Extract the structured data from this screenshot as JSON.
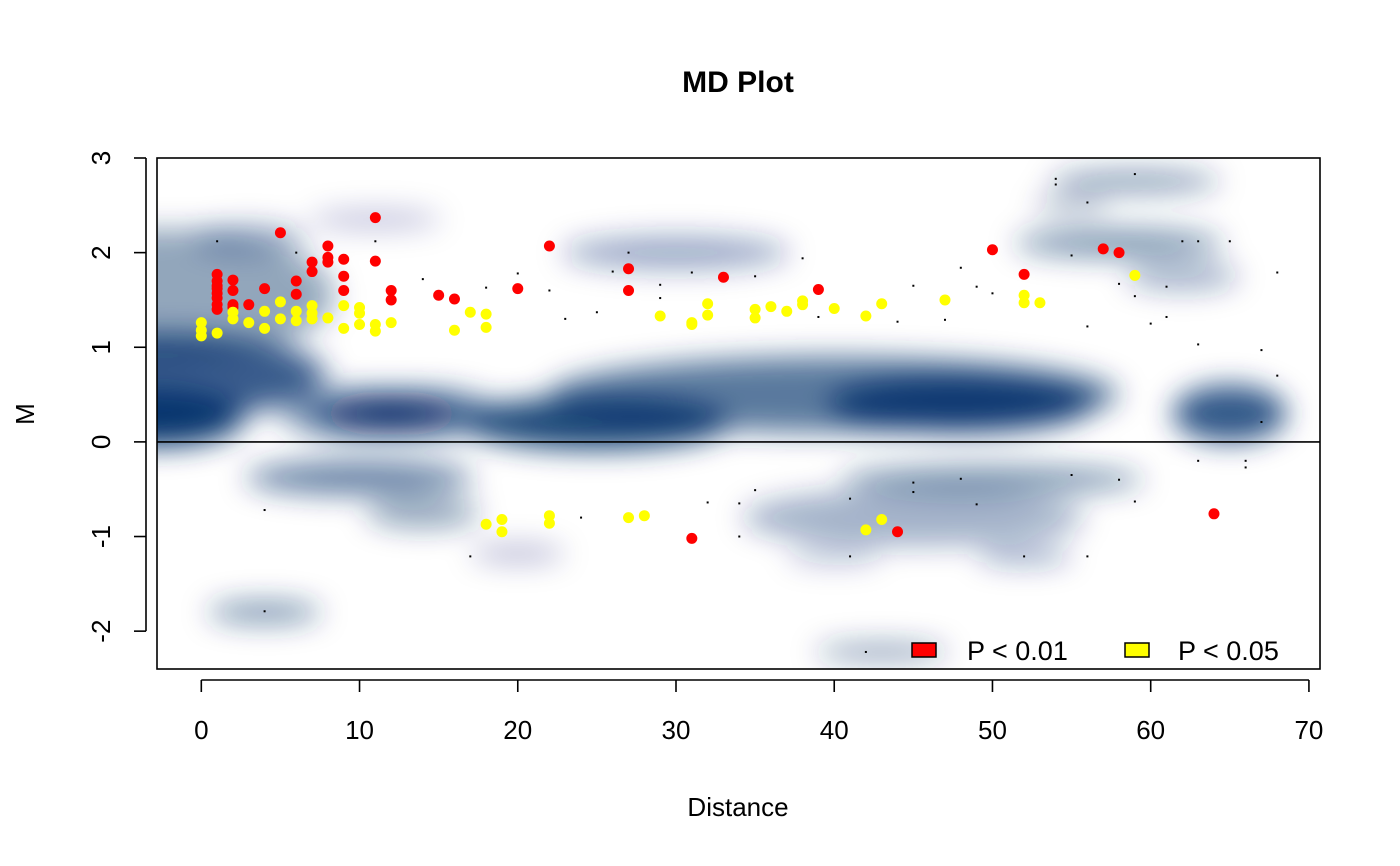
{
  "chart_data": {
    "type": "scatter",
    "title": "MD Plot",
    "xlabel": "Distance",
    "ylabel": "M",
    "xlim": [
      -2.8,
      70.7
    ],
    "ylim": [
      -2.4,
      3.0
    ],
    "xticks": [
      0,
      10,
      20,
      30,
      40,
      50,
      60,
      70
    ],
    "yticks": [
      -2,
      -1,
      0,
      1,
      2,
      3
    ],
    "hline_y": 0,
    "background": "smoothed density (blue)",
    "colors": {
      "density": "#08306b",
      "p001": "#ff0000",
      "p005": "#ffff00",
      "outlier": "#000000"
    },
    "legend": {
      "placement": "bottom-right",
      "items": [
        {
          "label": "P < 0.01",
          "color": "#ff0000"
        },
        {
          "label": "P < 0.05",
          "color": "#ffff00"
        }
      ]
    },
    "series": [
      {
        "name": "P < 0.01",
        "color": "#ff0000",
        "points": [
          [
            1,
            1.77
          ],
          [
            1,
            1.7
          ],
          [
            1,
            1.65
          ],
          [
            1,
            1.62
          ],
          [
            1,
            1.57
          ],
          [
            1,
            1.52
          ],
          [
            1,
            1.45
          ],
          [
            1,
            1.4
          ],
          [
            2,
            1.71
          ],
          [
            2,
            1.6
          ],
          [
            2,
            1.45
          ],
          [
            2,
            1.42
          ],
          [
            3,
            1.45
          ],
          [
            4,
            1.62
          ],
          [
            5,
            2.21
          ],
          [
            6,
            1.7
          ],
          [
            6,
            1.56
          ],
          [
            7,
            1.9
          ],
          [
            7,
            1.8
          ],
          [
            8,
            2.07
          ],
          [
            8,
            1.95
          ],
          [
            8,
            1.9
          ],
          [
            9,
            1.93
          ],
          [
            9,
            1.75
          ],
          [
            9,
            1.6
          ],
          [
            11,
            2.37
          ],
          [
            11,
            1.91
          ],
          [
            12,
            1.6
          ],
          [
            12,
            1.5
          ],
          [
            15,
            1.55
          ],
          [
            16,
            1.51
          ],
          [
            20,
            1.62
          ],
          [
            22,
            2.07
          ],
          [
            27,
            1.83
          ],
          [
            27,
            1.6
          ],
          [
            31,
            -1.02
          ],
          [
            33,
            1.74
          ],
          [
            39,
            1.61
          ],
          [
            44,
            -0.95
          ],
          [
            50,
            2.03
          ],
          [
            52,
            1.77
          ],
          [
            57,
            2.04
          ],
          [
            58,
            2.0
          ],
          [
            64,
            -0.76
          ]
        ]
      },
      {
        "name": "P < 0.05",
        "color": "#ffff00",
        "points": [
          [
            0,
            1.26
          ],
          [
            0,
            1.18
          ],
          [
            0,
            1.12
          ],
          [
            1,
            1.15
          ],
          [
            2,
            1.37
          ],
          [
            2,
            1.3
          ],
          [
            3,
            1.26
          ],
          [
            4,
            1.38
          ],
          [
            4,
            1.2
          ],
          [
            5,
            1.48
          ],
          [
            5,
            1.3
          ],
          [
            6,
            1.38
          ],
          [
            6,
            1.28
          ],
          [
            7,
            1.44
          ],
          [
            7,
            1.36
          ],
          [
            7,
            1.3
          ],
          [
            8,
            1.31
          ],
          [
            9,
            1.44
          ],
          [
            9,
            1.2
          ],
          [
            10,
            1.42
          ],
          [
            10,
            1.36
          ],
          [
            10,
            1.24
          ],
          [
            11,
            1.24
          ],
          [
            11,
            1.17
          ],
          [
            12,
            1.26
          ],
          [
            16,
            1.18
          ],
          [
            17,
            1.37
          ],
          [
            18,
            1.35
          ],
          [
            18,
            1.21
          ],
          [
            18,
            -0.87
          ],
          [
            19,
            -0.82
          ],
          [
            19,
            -0.95
          ],
          [
            22,
            -0.78
          ],
          [
            22,
            -0.86
          ],
          [
            27,
            -0.8
          ],
          [
            28,
            -0.78
          ],
          [
            29,
            1.33
          ],
          [
            31,
            1.26
          ],
          [
            31,
            1.24
          ],
          [
            32,
            1.46
          ],
          [
            32,
            1.34
          ],
          [
            35,
            1.4
          ],
          [
            35,
            1.31
          ],
          [
            36,
            1.43
          ],
          [
            37,
            1.38
          ],
          [
            38,
            1.49
          ],
          [
            38,
            1.45
          ],
          [
            40,
            1.41
          ],
          [
            42,
            1.33
          ],
          [
            42,
            -0.93
          ],
          [
            43,
            1.46
          ],
          [
            43,
            -0.82
          ],
          [
            47,
            1.5
          ],
          [
            52,
            1.55
          ],
          [
            52,
            1.47
          ],
          [
            53,
            1.47
          ],
          [
            59,
            1.76
          ]
        ]
      },
      {
        "name": "outliers",
        "color": "#000000",
        "points": [
          [
            1,
            2.12
          ],
          [
            4,
            -0.72
          ],
          [
            4,
            -1.79
          ],
          [
            6,
            2.0
          ],
          [
            11,
            2.12
          ],
          [
            14,
            1.72
          ],
          [
            17,
            -1.21
          ],
          [
            18,
            1.63
          ],
          [
            20,
            1.78
          ],
          [
            22,
            1.6
          ],
          [
            23,
            1.3
          ],
          [
            24,
            -0.8
          ],
          [
            25,
            1.37
          ],
          [
            26,
            1.8
          ],
          [
            27,
            2.0
          ],
          [
            29,
            1.66
          ],
          [
            29,
            1.52
          ],
          [
            31,
            1.79
          ],
          [
            32,
            -0.64
          ],
          [
            34,
            -1.0
          ],
          [
            34,
            -0.65
          ],
          [
            35,
            1.75
          ],
          [
            35,
            -0.51
          ],
          [
            38,
            1.94
          ],
          [
            39,
            1.32
          ],
          [
            41,
            -0.6
          ],
          [
            41,
            -1.21
          ],
          [
            42,
            -2.22
          ],
          [
            44,
            1.27
          ],
          [
            45,
            1.65
          ],
          [
            45,
            -0.43
          ],
          [
            45,
            -0.53
          ],
          [
            47,
            1.29
          ],
          [
            48,
            1.84
          ],
          [
            48,
            -0.39
          ],
          [
            49,
            1.64
          ],
          [
            49,
            -0.66
          ],
          [
            50,
            1.57
          ],
          [
            52,
            -1.21
          ],
          [
            54,
            2.78
          ],
          [
            54,
            2.72
          ],
          [
            55,
            1.97
          ],
          [
            55,
            -0.35
          ],
          [
            56,
            2.53
          ],
          [
            56,
            1.22
          ],
          [
            56,
            -1.21
          ],
          [
            58,
            1.67
          ],
          [
            58,
            -0.4
          ],
          [
            59,
            2.83
          ],
          [
            59,
            1.54
          ],
          [
            59,
            -0.63
          ],
          [
            60,
            1.25
          ],
          [
            61,
            1.64
          ],
          [
            61,
            1.32
          ],
          [
            62,
            2.12
          ],
          [
            63,
            2.12
          ],
          [
            63,
            1.03
          ],
          [
            63,
            -0.2
          ],
          [
            65,
            2.12
          ],
          [
            66,
            -0.2
          ],
          [
            66,
            -0.27
          ],
          [
            67,
            0.97
          ],
          [
            67,
            0.21
          ],
          [
            68,
            1.79
          ],
          [
            68,
            0.7
          ]
        ]
      }
    ],
    "density_regions": [
      [
        -2.5,
        0.25,
        -3.5,
        0.0,
        9,
        0.3,
        1.0
      ],
      [
        9,
        0.3,
        15,
        0.0,
        7,
        0.25,
        0.95
      ],
      [
        25,
        0.2,
        25,
        0.0,
        14,
        0.28,
        0.75
      ],
      [
        48,
        0.4,
        48,
        0.0,
        14,
        0.3,
        0.7
      ],
      [
        65,
        0.3,
        65,
        0.0,
        6,
        0.3,
        0.6
      ],
      [
        -2,
        0.7,
        -3,
        0.0,
        17,
        0.45,
        0.55
      ],
      [
        40,
        0.5,
        40,
        0.0,
        30,
        0.4,
        0.4
      ],
      [
        -2,
        1.55,
        -3,
        0.0,
        18,
        0.7,
        0.22
      ],
      [
        3,
        2.15,
        3,
        0.0,
        6,
        0.15,
        0.18
      ],
      [
        11,
        2.35,
        11,
        0.0,
        7,
        0.1,
        0.12
      ],
      [
        30,
        2.0,
        30,
        0.0,
        12,
        0.18,
        0.2
      ],
      [
        58,
        2.1,
        58,
        0.0,
        11,
        0.15,
        0.28
      ],
      [
        59,
        2.75,
        59,
        0.0,
        9,
        0.12,
        0.25
      ],
      [
        55,
        2.5,
        55,
        0.0,
        4,
        0.1,
        0.15
      ],
      [
        14,
        -0.75,
        14,
        0.0,
        6,
        0.16,
        0.22
      ],
      [
        45,
        -0.8,
        45,
        0.0,
        18,
        0.3,
        0.18
      ],
      [
        52,
        -1.2,
        52,
        0.0,
        5,
        0.1,
        0.2
      ],
      [
        20,
        -1.18,
        20,
        0.0,
        5,
        0.1,
        0.14
      ],
      [
        40,
        -1.2,
        40,
        0.0,
        5,
        0.1,
        0.12
      ],
      [
        4,
        -1.8,
        4,
        0.0,
        6,
        0.12,
        0.28
      ],
      [
        43,
        -2.22,
        43,
        0.0,
        7,
        0.1,
        0.22
      ],
      [
        10,
        -0.38,
        10,
        0.0,
        12,
        0.18,
        0.35
      ],
      [
        50,
        -0.4,
        50,
        0.0,
        16,
        0.15,
        0.28
      ],
      [
        62,
        1.75,
        62,
        0.0,
        6,
        0.15,
        0.18
      ]
    ]
  }
}
